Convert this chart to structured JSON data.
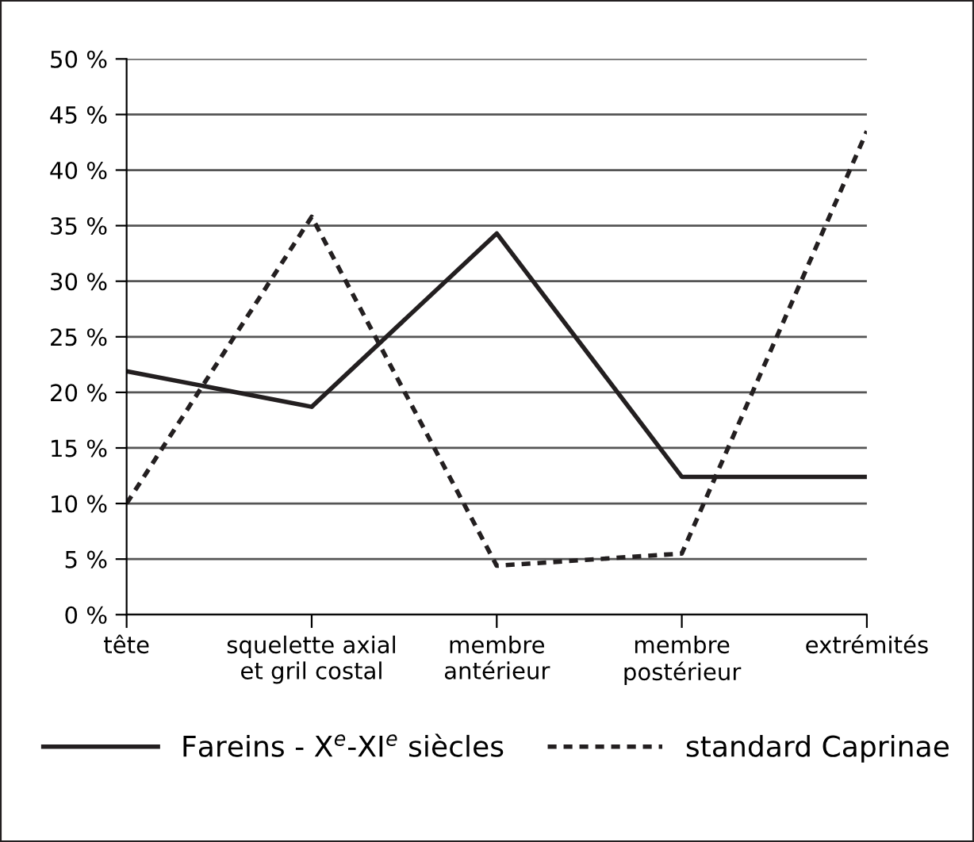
{
  "chart_data": {
    "type": "line",
    "categories": [
      "tête",
      "squelette axial\net gril costal",
      "membre\nantérieur",
      "membre\npostérieur",
      "extrémités"
    ],
    "series": [
      {
        "name": "Fareins - X$^{e}$-XI$^{e}$ siècles",
        "color": "#231f20",
        "values": [
          21.9,
          18.7,
          34.3,
          12.4,
          12.4
        ],
        "line_style": "solid"
      },
      {
        "name": "standard Caprinae",
        "color": "#231f20",
        "values": [
          10,
          35.8,
          4.4,
          5.5,
          43.5
        ],
        "line_style": "dotted"
      }
    ],
    "ylim": [
      0,
      50
    ],
    "yticks": [
      {
        "value": 0,
        "label": "0 %"
      },
      {
        "value": 5,
        "label": "5 %"
      },
      {
        "value": 10,
        "label": "10 %"
      },
      {
        "value": 15,
        "label": "15 %"
      },
      {
        "value": 20,
        "label": "20 %"
      },
      {
        "value": 25,
        "label": "25 %"
      },
      {
        "value": 30,
        "label": "30 %"
      },
      {
        "value": 35,
        "label": "35 %"
      },
      {
        "value": 40,
        "label": "40 %"
      },
      {
        "value": 45,
        "label": "45 %"
      },
      {
        "value": 50,
        "label": "50 %"
      }
    ],
    "grid": "y",
    "legend": "bottom",
    "marker": "none"
  }
}
